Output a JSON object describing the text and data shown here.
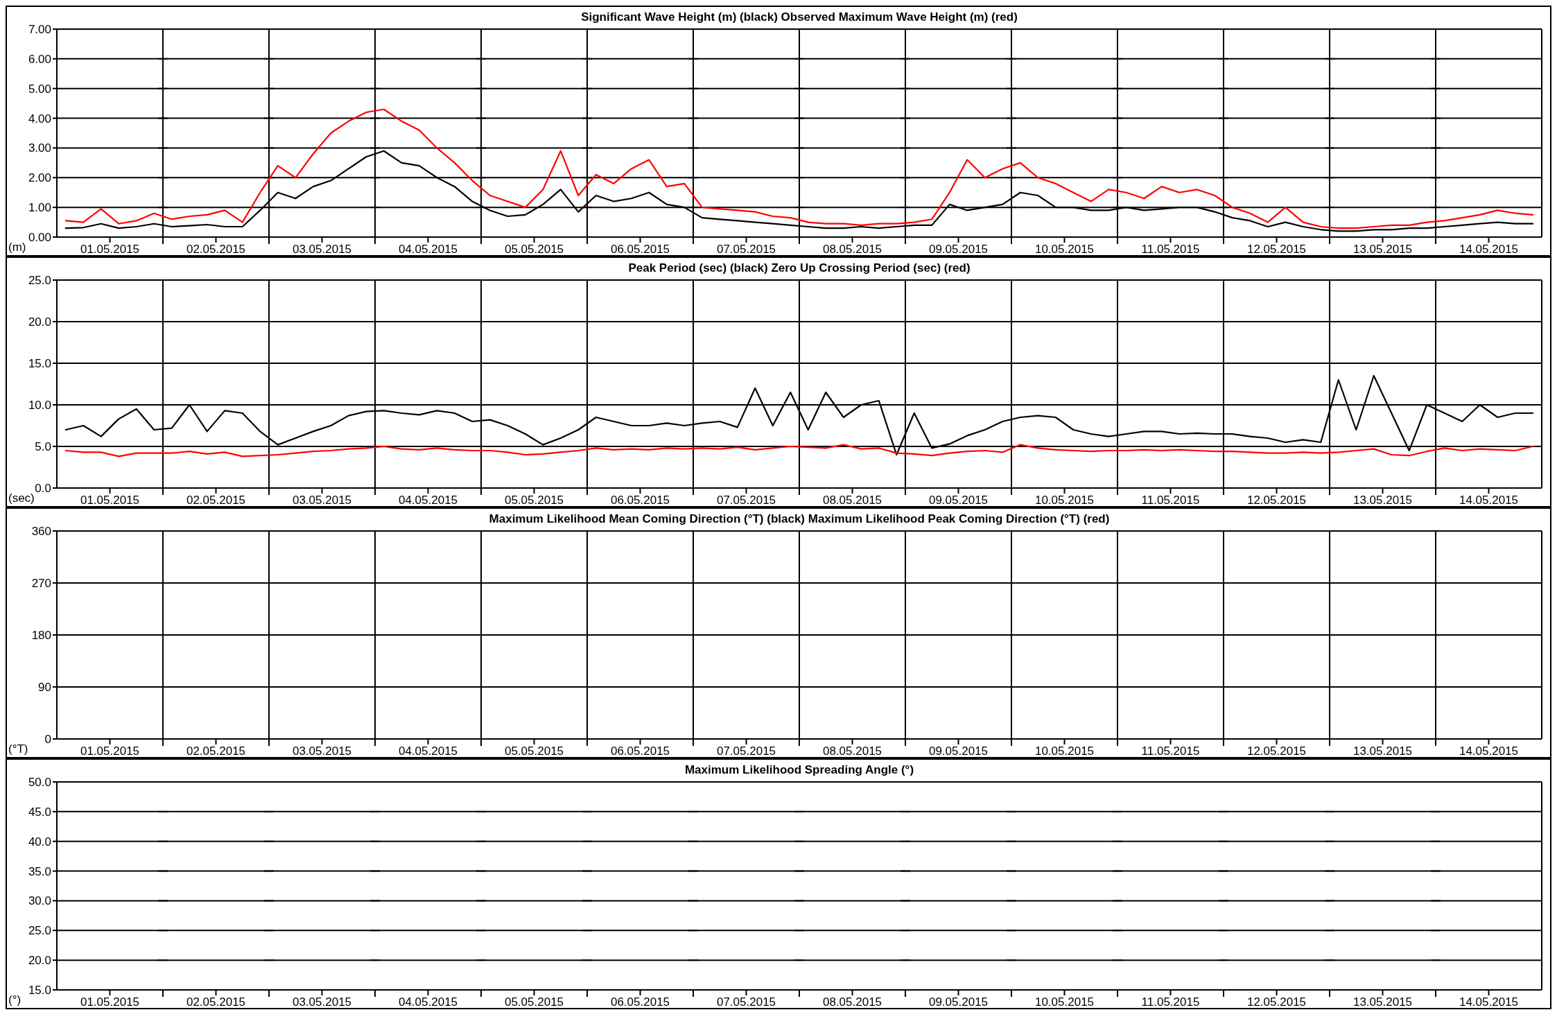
{
  "chart_data": [
    {
      "type": "line",
      "title": "Significant Wave Height (m) (black) Observed Maximum Wave Height (m) (red)",
      "ylabel": "(m)",
      "grid": true,
      "line_style": "solid",
      "marker": "none",
      "xlim": [
        "2015-05-01T00:00",
        "2015-05-15T00:00"
      ],
      "xticks": [
        {
          "value": "2015-05-01T12:00",
          "label": "01.05.2015"
        },
        {
          "value": "2015-05-02T00:00",
          "label": null
        },
        {
          "value": "2015-05-02T12:00",
          "label": "02.05.2015"
        },
        {
          "value": "2015-05-03T00:00",
          "label": null
        },
        {
          "value": "2015-05-03T12:00",
          "label": "03.05.2015"
        },
        {
          "value": "2015-05-04T00:00",
          "label": null
        },
        {
          "value": "2015-05-04T12:00",
          "label": "04.05.2015"
        },
        {
          "value": "2015-05-05T00:00",
          "label": null
        },
        {
          "value": "2015-05-05T12:00",
          "label": "05.05.2015"
        },
        {
          "value": "2015-05-06T00:00",
          "label": null
        },
        {
          "value": "2015-05-06T12:00",
          "label": "06.05.2015"
        },
        {
          "value": "2015-05-07T00:00",
          "label": null
        },
        {
          "value": "2015-05-07T12:00",
          "label": "07.05.2015"
        },
        {
          "value": "2015-05-08T00:00",
          "label": null
        },
        {
          "value": "2015-05-08T12:00",
          "label": "08.05.2015"
        },
        {
          "value": "2015-05-09T00:00",
          "label": null
        },
        {
          "value": "2015-05-09T12:00",
          "label": "09.05.2015"
        },
        {
          "value": "2015-05-10T00:00",
          "label": null
        },
        {
          "value": "2015-05-10T12:00",
          "label": "10.05.2015"
        },
        {
          "value": "2015-05-11T00:00",
          "label": null
        },
        {
          "value": "2015-05-11T12:00",
          "label": "11.05.2015"
        },
        {
          "value": "2015-05-12T00:00",
          "label": null
        },
        {
          "value": "2015-05-12T12:00",
          "label": "12.05.2015"
        },
        {
          "value": "2015-05-13T00:00",
          "label": null
        },
        {
          "value": "2015-05-13T12:00",
          "label": "13.05.2015"
        },
        {
          "value": "2015-05-14T00:00",
          "label": null
        },
        {
          "value": "2015-05-14T12:00",
          "label": "14.05.2015"
        }
      ],
      "ylim": [
        0,
        7
      ],
      "yticks": [
        {
          "value": 0,
          "label": "0.00"
        },
        {
          "value": 1,
          "label": "1.00"
        },
        {
          "value": 2,
          "label": "2.00"
        },
        {
          "value": 3,
          "label": "3.00"
        },
        {
          "value": 4,
          "label": "4.00"
        },
        {
          "value": 5,
          "label": "5.00"
        },
        {
          "value": 6,
          "label": "6.00"
        },
        {
          "value": 7,
          "label": "7.00"
        }
      ],
      "x": [
        "2015-05-01T02:00",
        "2015-05-01T06:00",
        "2015-05-01T10:00",
        "2015-05-01T14:00",
        "2015-05-01T18:00",
        "2015-05-01T22:00",
        "2015-05-02T02:00",
        "2015-05-02T06:00",
        "2015-05-02T10:00",
        "2015-05-02T14:00",
        "2015-05-02T18:00",
        "2015-05-02T22:00",
        "2015-05-03T02:00",
        "2015-05-03T06:00",
        "2015-05-03T10:00",
        "2015-05-03T14:00",
        "2015-05-03T18:00",
        "2015-05-03T22:00",
        "2015-05-04T02:00",
        "2015-05-04T06:00",
        "2015-05-04T10:00",
        "2015-05-04T14:00",
        "2015-05-04T18:00",
        "2015-05-04T22:00",
        "2015-05-05T02:00",
        "2015-05-05T06:00",
        "2015-05-05T10:00",
        "2015-05-05T14:00",
        "2015-05-05T18:00",
        "2015-05-05T22:00",
        "2015-05-06T02:00",
        "2015-05-06T06:00",
        "2015-05-06T10:00",
        "2015-05-06T14:00",
        "2015-05-06T18:00",
        "2015-05-06T22:00",
        "2015-05-07T02:00",
        "2015-05-07T06:00",
        "2015-05-07T10:00",
        "2015-05-07T14:00",
        "2015-05-07T18:00",
        "2015-05-07T22:00",
        "2015-05-08T02:00",
        "2015-05-08T06:00",
        "2015-05-08T10:00",
        "2015-05-08T14:00",
        "2015-05-08T18:00",
        "2015-05-08T22:00",
        "2015-05-09T02:00",
        "2015-05-09T06:00",
        "2015-05-09T10:00",
        "2015-05-09T14:00",
        "2015-05-09T18:00",
        "2015-05-09T22:00",
        "2015-05-10T02:00",
        "2015-05-10T06:00",
        "2015-05-10T10:00",
        "2015-05-10T14:00",
        "2015-05-10T18:00",
        "2015-05-10T22:00",
        "2015-05-11T02:00",
        "2015-05-11T06:00",
        "2015-05-11T10:00",
        "2015-05-11T14:00",
        "2015-05-11T18:00",
        "2015-05-11T22:00",
        "2015-05-12T02:00",
        "2015-05-12T06:00",
        "2015-05-12T10:00",
        "2015-05-12T14:00",
        "2015-05-12T18:00",
        "2015-05-12T22:00",
        "2015-05-13T02:00",
        "2015-05-13T06:00",
        "2015-05-13T10:00",
        "2015-05-13T14:00",
        "2015-05-13T18:00",
        "2015-05-13T22:00",
        "2015-05-14T02:00",
        "2015-05-14T06:00",
        "2015-05-14T10:00",
        "2015-05-14T14:00",
        "2015-05-14T18:00",
        "2015-05-14T22:00"
      ],
      "series": [
        {
          "color": "#ff0000",
          "values": [
            0.55,
            0.5,
            0.95,
            0.45,
            0.55,
            0.8,
            0.6,
            0.7,
            0.75,
            0.9,
            0.5,
            1.5,
            2.4,
            2.0,
            2.8,
            3.5,
            3.9,
            4.2,
            4.3,
            3.9,
            3.6,
            3.0,
            2.5,
            1.9,
            1.4,
            1.2,
            1.0,
            1.6,
            2.9,
            1.4,
            2.1,
            1.8,
            2.3,
            2.6,
            1.7,
            1.8,
            1.0,
            0.95,
            0.9,
            0.85,
            0.7,
            0.65,
            0.5,
            0.45,
            0.45,
            0.4,
            0.45,
            0.45,
            0.5,
            0.6,
            1.5,
            2.6,
            2.0,
            2.3,
            2.5,
            2.0,
            1.8,
            1.5,
            1.2,
            1.6,
            1.5,
            1.3,
            1.7,
            1.5,
            1.6,
            1.4,
            1.0,
            0.8,
            0.5,
            1.0,
            0.5,
            0.35,
            0.3,
            0.3,
            0.35,
            0.4,
            0.4,
            0.5,
            0.55,
            0.65,
            0.75,
            0.9,
            0.8,
            0.75
          ]
        },
        {
          "color": "#000000",
          "values": [
            0.3,
            0.32,
            0.45,
            0.3,
            0.35,
            0.45,
            0.35,
            0.38,
            0.42,
            0.35,
            0.35,
            0.9,
            1.5,
            1.3,
            1.7,
            1.9,
            2.3,
            2.7,
            2.9,
            2.5,
            2.4,
            2.0,
            1.7,
            1.2,
            0.9,
            0.7,
            0.75,
            1.1,
            1.6,
            0.85,
            1.4,
            1.2,
            1.3,
            1.5,
            1.1,
            1.0,
            0.65,
            0.6,
            0.55,
            0.5,
            0.45,
            0.4,
            0.35,
            0.3,
            0.3,
            0.35,
            0.3,
            0.35,
            0.4,
            0.4,
            1.1,
            0.9,
            1.0,
            1.1,
            1.5,
            1.4,
            1.0,
            1.0,
            0.9,
            0.9,
            1.0,
            0.9,
            0.95,
            1.0,
            1.0,
            0.85,
            0.65,
            0.55,
            0.35,
            0.5,
            0.35,
            0.25,
            0.2,
            0.2,
            0.25,
            0.25,
            0.3,
            0.3,
            0.35,
            0.4,
            0.45,
            0.5,
            0.45,
            0.45
          ]
        }
      ]
    },
    {
      "type": "line",
      "title": "Peak Period (sec) (black) Zero Up Crossing Period (sec) (red)",
      "ylabel": "(sec)",
      "grid": true,
      "line_style": "solid",
      "marker": "none",
      "xlim": [
        "2015-05-01T00:00",
        "2015-05-15T00:00"
      ],
      "xticks": [
        {
          "value": "2015-05-01T12:00",
          "label": "01.05.2015"
        },
        {
          "value": "2015-05-02T00:00",
          "label": null
        },
        {
          "value": "2015-05-02T12:00",
          "label": "02.05.2015"
        },
        {
          "value": "2015-05-03T00:00",
          "label": null
        },
        {
          "value": "2015-05-03T12:00",
          "label": "03.05.2015"
        },
        {
          "value": "2015-05-04T00:00",
          "label": null
        },
        {
          "value": "2015-05-04T12:00",
          "label": "04.05.2015"
        },
        {
          "value": "2015-05-05T00:00",
          "label": null
        },
        {
          "value": "2015-05-05T12:00",
          "label": "05.05.2015"
        },
        {
          "value": "2015-05-06T00:00",
          "label": null
        },
        {
          "value": "2015-05-06T12:00",
          "label": "06.05.2015"
        },
        {
          "value": "2015-05-07T00:00",
          "label": null
        },
        {
          "value": "2015-05-07T12:00",
          "label": "07.05.2015"
        },
        {
          "value": "2015-05-08T00:00",
          "label": null
        },
        {
          "value": "2015-05-08T12:00",
          "label": "08.05.2015"
        },
        {
          "value": "2015-05-09T00:00",
          "label": null
        },
        {
          "value": "2015-05-09T12:00",
          "label": "09.05.2015"
        },
        {
          "value": "2015-05-10T00:00",
          "label": null
        },
        {
          "value": "2015-05-10T12:00",
          "label": "10.05.2015"
        },
        {
          "value": "2015-05-11T00:00",
          "label": null
        },
        {
          "value": "2015-05-11T12:00",
          "label": "11.05.2015"
        },
        {
          "value": "2015-05-12T00:00",
          "label": null
        },
        {
          "value": "2015-05-12T12:00",
          "label": "12.05.2015"
        },
        {
          "value": "2015-05-13T00:00",
          "label": null
        },
        {
          "value": "2015-05-13T12:00",
          "label": "13.05.2015"
        },
        {
          "value": "2015-05-14T00:00",
          "label": null
        },
        {
          "value": "2015-05-14T12:00",
          "label": "14.05.2015"
        }
      ],
      "ylim": [
        0,
        25
      ],
      "yticks": [
        {
          "value": 0,
          "label": "0.0"
        },
        {
          "value": 5,
          "label": "5.0"
        },
        {
          "value": 10,
          "label": "10.0"
        },
        {
          "value": 15,
          "label": "15.0"
        },
        {
          "value": 20,
          "label": "20.0"
        },
        {
          "value": 25,
          "label": "25.0"
        }
      ],
      "x": [
        "2015-05-01T02:00",
        "2015-05-01T06:00",
        "2015-05-01T10:00",
        "2015-05-01T14:00",
        "2015-05-01T18:00",
        "2015-05-01T22:00",
        "2015-05-02T02:00",
        "2015-05-02T06:00",
        "2015-05-02T10:00",
        "2015-05-02T14:00",
        "2015-05-02T18:00",
        "2015-05-02T22:00",
        "2015-05-03T02:00",
        "2015-05-03T06:00",
        "2015-05-03T10:00",
        "2015-05-03T14:00",
        "2015-05-03T18:00",
        "2015-05-03T22:00",
        "2015-05-04T02:00",
        "2015-05-04T06:00",
        "2015-05-04T10:00",
        "2015-05-04T14:00",
        "2015-05-04T18:00",
        "2015-05-04T22:00",
        "2015-05-05T02:00",
        "2015-05-05T06:00",
        "2015-05-05T10:00",
        "2015-05-05T14:00",
        "2015-05-05T18:00",
        "2015-05-05T22:00",
        "2015-05-06T02:00",
        "2015-05-06T06:00",
        "2015-05-06T10:00",
        "2015-05-06T14:00",
        "2015-05-06T18:00",
        "2015-05-06T22:00",
        "2015-05-07T02:00",
        "2015-05-07T06:00",
        "2015-05-07T10:00",
        "2015-05-07T14:00",
        "2015-05-07T18:00",
        "2015-05-07T22:00",
        "2015-05-08T02:00",
        "2015-05-08T06:00",
        "2015-05-08T10:00",
        "2015-05-08T14:00",
        "2015-05-08T18:00",
        "2015-05-08T22:00",
        "2015-05-09T02:00",
        "2015-05-09T06:00",
        "2015-05-09T10:00",
        "2015-05-09T14:00",
        "2015-05-09T18:00",
        "2015-05-09T22:00",
        "2015-05-10T02:00",
        "2015-05-10T06:00",
        "2015-05-10T10:00",
        "2015-05-10T14:00",
        "2015-05-10T18:00",
        "2015-05-10T22:00",
        "2015-05-11T02:00",
        "2015-05-11T06:00",
        "2015-05-11T10:00",
        "2015-05-11T14:00",
        "2015-05-11T18:00",
        "2015-05-11T22:00",
        "2015-05-12T02:00",
        "2015-05-12T06:00",
        "2015-05-12T10:00",
        "2015-05-12T14:00",
        "2015-05-12T18:00",
        "2015-05-12T22:00",
        "2015-05-13T02:00",
        "2015-05-13T06:00",
        "2015-05-13T10:00",
        "2015-05-13T14:00",
        "2015-05-13T18:00",
        "2015-05-13T22:00",
        "2015-05-14T02:00",
        "2015-05-14T06:00",
        "2015-05-14T10:00",
        "2015-05-14T14:00",
        "2015-05-14T18:00",
        "2015-05-14T22:00"
      ],
      "series": [
        {
          "color": "#000000",
          "values": [
            7.0,
            7.5,
            6.2,
            8.3,
            9.5,
            7.0,
            7.2,
            10.0,
            6.8,
            9.3,
            9.0,
            6.8,
            5.2,
            6.0,
            6.8,
            7.5,
            8.7,
            9.2,
            9.3,
            9.0,
            8.8,
            9.3,
            9.0,
            8.0,
            8.2,
            7.5,
            6.5,
            5.2,
            6.0,
            7.0,
            8.5,
            8.0,
            7.5,
            7.5,
            7.8,
            7.5,
            7.8,
            8.0,
            7.3,
            12.0,
            7.5,
            11.5,
            7.0,
            11.5,
            8.5,
            10.0,
            10.5,
            4.0,
            9.0,
            4.8,
            5.3,
            6.3,
            7.0,
            8.0,
            8.5,
            8.7,
            8.5,
            7.0,
            6.5,
            6.2,
            6.5,
            6.8,
            6.8,
            6.5,
            6.6,
            6.5,
            6.5,
            6.2,
            6.0,
            5.5,
            5.8,
            5.5,
            13.0,
            7.0,
            13.5,
            9.0,
            4.5,
            10.0,
            9.0,
            8.0,
            10.0,
            8.5,
            9.0,
            9.0
          ]
        },
        {
          "color": "#ff0000",
          "values": [
            4.5,
            4.3,
            4.3,
            3.8,
            4.2,
            4.2,
            4.2,
            4.4,
            4.1,
            4.3,
            3.8,
            3.9,
            4.0,
            4.2,
            4.4,
            4.5,
            4.7,
            4.8,
            5.0,
            4.7,
            4.6,
            4.8,
            4.6,
            4.5,
            4.5,
            4.3,
            4.0,
            4.1,
            4.3,
            4.5,
            4.8,
            4.6,
            4.7,
            4.6,
            4.8,
            4.7,
            4.8,
            4.7,
            4.9,
            4.6,
            4.8,
            5.0,
            4.9,
            4.8,
            5.2,
            4.7,
            4.8,
            4.2,
            4.1,
            3.9,
            4.2,
            4.4,
            4.5,
            4.3,
            5.2,
            4.8,
            4.6,
            4.5,
            4.4,
            4.5,
            4.5,
            4.6,
            4.5,
            4.6,
            4.5,
            4.4,
            4.4,
            4.3,
            4.2,
            4.2,
            4.3,
            4.2,
            4.3,
            4.5,
            4.7,
            4.0,
            3.9,
            4.4,
            4.8,
            4.5,
            4.7,
            4.6,
            4.5,
            5.0
          ]
        }
      ]
    },
    {
      "type": "line",
      "title": "Maximum Likelihood Mean Coming Direction (°T) (black) Maximum Likelihood Peak Coming Direction (°T) (red)",
      "ylabel": "(°T)",
      "grid": true,
      "xlim": [
        "2015-05-01T00:00",
        "2015-05-15T00:00"
      ],
      "xticks": [
        {
          "value": "2015-05-01T12:00",
          "label": "01.05.2015"
        },
        {
          "value": "2015-05-02T00:00",
          "label": null
        },
        {
          "value": "2015-05-02T12:00",
          "label": "02.05.2015"
        },
        {
          "value": "2015-05-03T00:00",
          "label": null
        },
        {
          "value": "2015-05-03T12:00",
          "label": "03.05.2015"
        },
        {
          "value": "2015-05-04T00:00",
          "label": null
        },
        {
          "value": "2015-05-04T12:00",
          "label": "04.05.2015"
        },
        {
          "value": "2015-05-05T00:00",
          "label": null
        },
        {
          "value": "2015-05-05T12:00",
          "label": "05.05.2015"
        },
        {
          "value": "2015-05-06T00:00",
          "label": null
        },
        {
          "value": "2015-05-06T12:00",
          "label": "06.05.2015"
        },
        {
          "value": "2015-05-07T00:00",
          "label": null
        },
        {
          "value": "2015-05-07T12:00",
          "label": "07.05.2015"
        },
        {
          "value": "2015-05-08T00:00",
          "label": null
        },
        {
          "value": "2015-05-08T12:00",
          "label": "08.05.2015"
        },
        {
          "value": "2015-05-09T00:00",
          "label": null
        },
        {
          "value": "2015-05-09T12:00",
          "label": "09.05.2015"
        },
        {
          "value": "2015-05-10T00:00",
          "label": null
        },
        {
          "value": "2015-05-10T12:00",
          "label": "10.05.2015"
        },
        {
          "value": "2015-05-11T00:00",
          "label": null
        },
        {
          "value": "2015-05-11T12:00",
          "label": "11.05.2015"
        },
        {
          "value": "2015-05-12T00:00",
          "label": null
        },
        {
          "value": "2015-05-12T12:00",
          "label": "12.05.2015"
        },
        {
          "value": "2015-05-13T00:00",
          "label": null
        },
        {
          "value": "2015-05-13T12:00",
          "label": "13.05.2015"
        },
        {
          "value": "2015-05-14T00:00",
          "label": null
        },
        {
          "value": "2015-05-14T12:00",
          "label": "14.05.2015"
        }
      ],
      "ylim": [
        0,
        360
      ],
      "yticks": [
        0,
        90,
        180,
        270,
        360
      ]
    },
    {
      "type": "line",
      "title": "Maximum Likelihood Spreading Angle (°)",
      "ylabel": "(°)",
      "grid": "y",
      "xlim": [
        "2015-05-01T00:00",
        "2015-05-15T00:00"
      ],
      "xticks": [
        {
          "value": "2015-05-01T12:00",
          "label": "01.05.2015"
        },
        {
          "value": "2015-05-02T00:00",
          "label": null
        },
        {
          "value": "2015-05-02T12:00",
          "label": "02.05.2015"
        },
        {
          "value": "2015-05-03T00:00",
          "label": null
        },
        {
          "value": "2015-05-03T12:00",
          "label": "03.05.2015"
        },
        {
          "value": "2015-05-04T00:00",
          "label": null
        },
        {
          "value": "2015-05-04T12:00",
          "label": "04.05.2015"
        },
        {
          "value": "2015-05-05T00:00",
          "label": null
        },
        {
          "value": "2015-05-05T12:00",
          "label": "05.05.2015"
        },
        {
          "value": "2015-05-06T00:00",
          "label": null
        },
        {
          "value": "2015-05-06T12:00",
          "label": "06.05.2015"
        },
        {
          "value": "2015-05-07T00:00",
          "label": null
        },
        {
          "value": "2015-05-07T12:00",
          "label": "07.05.2015"
        },
        {
          "value": "2015-05-08T00:00",
          "label": null
        },
        {
          "value": "2015-05-08T12:00",
          "label": "08.05.2015"
        },
        {
          "value": "2015-05-09T00:00",
          "label": null
        },
        {
          "value": "2015-05-09T12:00",
          "label": "09.05.2015"
        },
        {
          "value": "2015-05-10T00:00",
          "label": null
        },
        {
          "value": "2015-05-10T12:00",
          "label": "10.05.2015"
        },
        {
          "value": "2015-05-11T00:00",
          "label": null
        },
        {
          "value": "2015-05-11T12:00",
          "label": "11.05.2015"
        },
        {
          "value": "2015-05-12T00:00",
          "label": null
        },
        {
          "value": "2015-05-12T12:00",
          "label": "12.05.2015"
        },
        {
          "value": "2015-05-13T00:00",
          "label": null
        },
        {
          "value": "2015-05-13T12:00",
          "label": "13.05.2015"
        },
        {
          "value": "2015-05-14T00:00",
          "label": null
        },
        {
          "value": "2015-05-14T12:00",
          "label": "14.05.2015"
        }
      ],
      "ylim": [
        15,
        50
      ],
      "yticks": [
        {
          "value": 15,
          "label": "15.0"
        },
        {
          "value": 20,
          "label": "20.0"
        },
        {
          "value": 25,
          "label": "25.0"
        },
        {
          "value": 30,
          "label": "30.0"
        },
        {
          "value": 35,
          "label": "35.0"
        },
        {
          "value": 40,
          "label": "40.0"
        },
        {
          "value": 45,
          "label": "45.0"
        },
        {
          "value": 50,
          "label": "50.0"
        }
      ]
    }
  ]
}
